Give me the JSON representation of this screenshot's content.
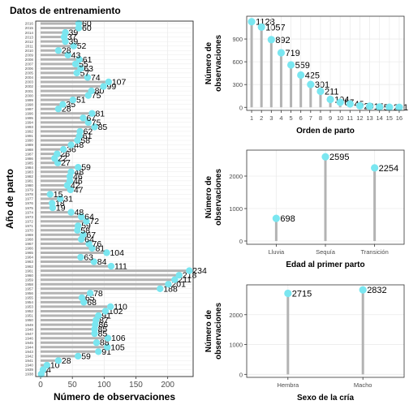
{
  "chart_data": [
    {
      "type": "lollipop-horizontal",
      "title": "Datos de entrenamiento",
      "xlabel": "Número de observaciones",
      "ylabel": "Año de parto",
      "xlim": [
        0,
        240
      ],
      "xticks": [
        0,
        50,
        100,
        150,
        200
      ],
      "categories": [
        "1938",
        "1939",
        "1940",
        "1941",
        "1942",
        "1943",
        "1944",
        "1945",
        "1946",
        "1947",
        "1948",
        "1949",
        "1950",
        "1951",
        "1952",
        "1953",
        "1954",
        "1955",
        "1956",
        "1957",
        "1958",
        "1959",
        "1960",
        "1961",
        "1962",
        "1963",
        "1964",
        "1965",
        "1966",
        "1967",
        "1968",
        "1969",
        "1970",
        "1971",
        "1972",
        "1973",
        "1974",
        "1975",
        "1976",
        "1977",
        "1978",
        "1979",
        "1980",
        "1981",
        "1982",
        "1983",
        "1984",
        "1985",
        "1986",
        "1987",
        "1988",
        "1989",
        "1990",
        "1991",
        "1992",
        "1993",
        "1994",
        "1995",
        "1996",
        "1997",
        "1998",
        "1999",
        "2000",
        "2001",
        "2002",
        "2003",
        "2004",
        "2005",
        "2006",
        "2007",
        "2008",
        "2009",
        "2010",
        "2011",
        "2012",
        "2013",
        "2014",
        "2015",
        "2016"
      ],
      "values": [
        1,
        4,
        10,
        28,
        59,
        91,
        105,
        88,
        106,
        85,
        85,
        86,
        87,
        91,
        102,
        110,
        68,
        65,
        78,
        188,
        201,
        211,
        218,
        234,
        111,
        84,
        63,
        104,
        81,
        76,
        64,
        67,
        58,
        59,
        72,
        64,
        48,
        19,
        18,
        31,
        15,
        47,
        42,
        46,
        46,
        48,
        59,
        27,
        22,
        26,
        36,
        48,
        58,
        61,
        62,
        85,
        75,
        67,
        81,
        28,
        35,
        51,
        75,
        80,
        99,
        107,
        74,
        57,
        63,
        55,
        61,
        43,
        28,
        52,
        39,
        37,
        39,
        60,
        60
      ],
      "grid": true
    },
    {
      "type": "lollipop",
      "xlabel": "Orden de parto",
      "ylabel": "Número de observaciones",
      "categories": [
        "1",
        "2",
        "3",
        "4",
        "5",
        "6",
        "7",
        "8",
        "9",
        "10",
        "11",
        "12",
        "13",
        "14",
        "15",
        "16"
      ],
      "values": [
        1128,
        1057,
        892,
        719,
        559,
        425,
        301,
        211,
        104,
        67,
        45,
        20,
        15,
        5,
        2,
        1
      ],
      "ylim": [
        -40,
        1200
      ],
      "yticks": [
        0,
        300,
        600,
        900
      ],
      "grid": true
    },
    {
      "type": "lollipop",
      "xlabel": "Edad al primer parto",
      "ylabel": "Número de observaciones",
      "categories": [
        "Lluvia",
        "Sequía",
        "Transición"
      ],
      "values": [
        698,
        2595,
        2254
      ],
      "ylim": [
        -100,
        2800
      ],
      "yticks": [
        0,
        1000,
        2000
      ],
      "grid": true
    },
    {
      "type": "lollipop",
      "xlabel": "Sexo de la cría",
      "ylabel": "Número de observaciones",
      "categories": [
        "Hembra",
        "Macho"
      ],
      "values": [
        2715,
        2832
      ],
      "ylim": [
        -100,
        3000
      ],
      "yticks": [
        0,
        1000,
        2000
      ],
      "grid": true
    }
  ],
  "colors": {
    "stick": "#b3b3b3",
    "dot": "#7ae6f0",
    "grid": "#ebebeb",
    "axis": "#333333"
  }
}
